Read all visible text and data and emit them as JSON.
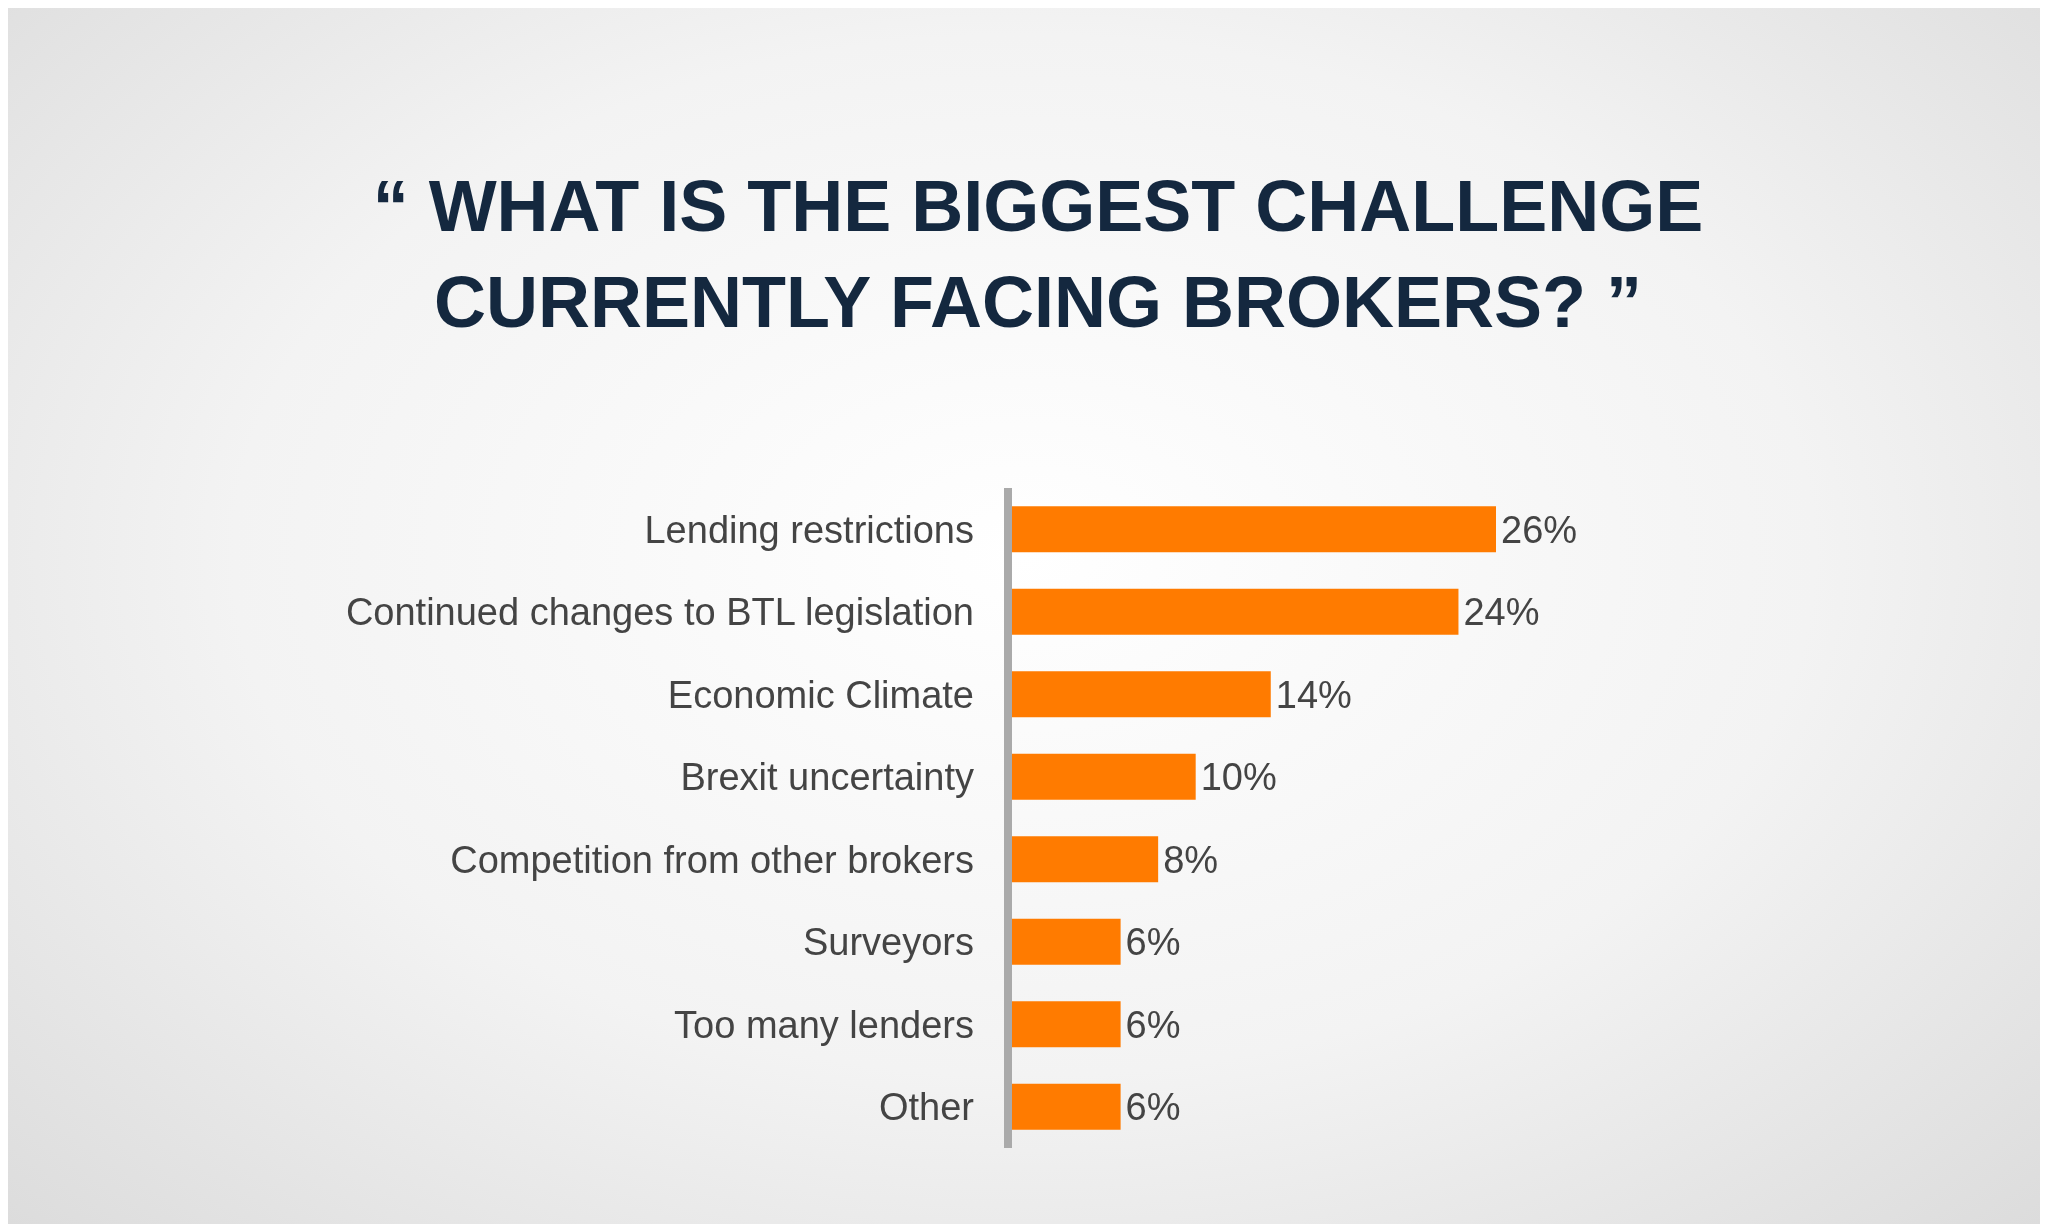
{
  "chart_data": {
    "type": "bar",
    "orientation": "horizontal",
    "title": "“ WHAT IS THE BIGGEST CHALLENGE CURRENTLY FACING BROKERS? ”",
    "categories": [
      "Lending restrictions",
      "Continued changes to BTL legislation",
      "Economic Climate",
      "Brexit uncertainty",
      "Competition from other brokers",
      "Surveyors",
      "Too many lenders",
      "Other"
    ],
    "values": [
      26,
      24,
      14,
      10,
      8,
      6,
      6,
      6
    ],
    "value_labels": [
      "26%",
      "24%",
      "14%",
      "10%",
      "8%",
      "6%",
      "6%",
      "6%"
    ],
    "color": "#ff7b00",
    "grid": false,
    "legend": false
  }
}
